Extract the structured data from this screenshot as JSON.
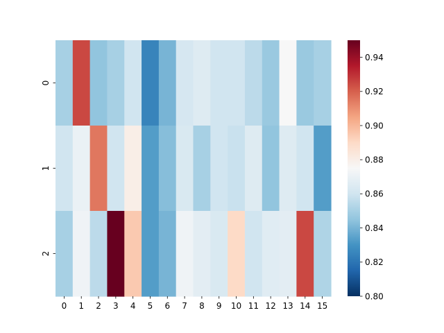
{
  "chart_data": {
    "type": "heatmap",
    "title": "",
    "xlabel": "",
    "ylabel": "",
    "x_categories": [
      "0",
      "1",
      "2",
      "3",
      "4",
      "5",
      "6",
      "7",
      "8",
      "9",
      "10",
      "11",
      "12",
      "13",
      "14",
      "15"
    ],
    "y_categories": [
      "0",
      "1",
      "2"
    ],
    "values": [
      [
        0.85,
        0.925,
        0.845,
        0.85,
        0.86,
        0.825,
        0.84,
        0.862,
        0.865,
        0.86,
        0.86,
        0.855,
        0.847,
        0.875,
        0.847,
        0.85
      ],
      [
        0.86,
        0.87,
        0.915,
        0.86,
        0.88,
        0.833,
        0.843,
        0.863,
        0.85,
        0.86,
        0.858,
        0.865,
        0.845,
        0.865,
        0.86,
        0.833
      ],
      [
        0.85,
        0.872,
        0.855,
        0.95,
        0.895,
        0.833,
        0.84,
        0.872,
        0.867,
        0.863,
        0.89,
        0.86,
        0.866,
        0.867,
        0.925,
        0.852
      ]
    ],
    "colorbar": {
      "colormap": "RdBu_r",
      "vmin": 0.8,
      "vmax": 0.95,
      "ticks": [
        0.8,
        0.82,
        0.84,
        0.86,
        0.88,
        0.9,
        0.92,
        0.94
      ],
      "tick_labels": [
        "0.80",
        "0.82",
        "0.84",
        "0.86",
        "0.88",
        "0.90",
        "0.92",
        "0.94"
      ]
    },
    "grid": false
  }
}
